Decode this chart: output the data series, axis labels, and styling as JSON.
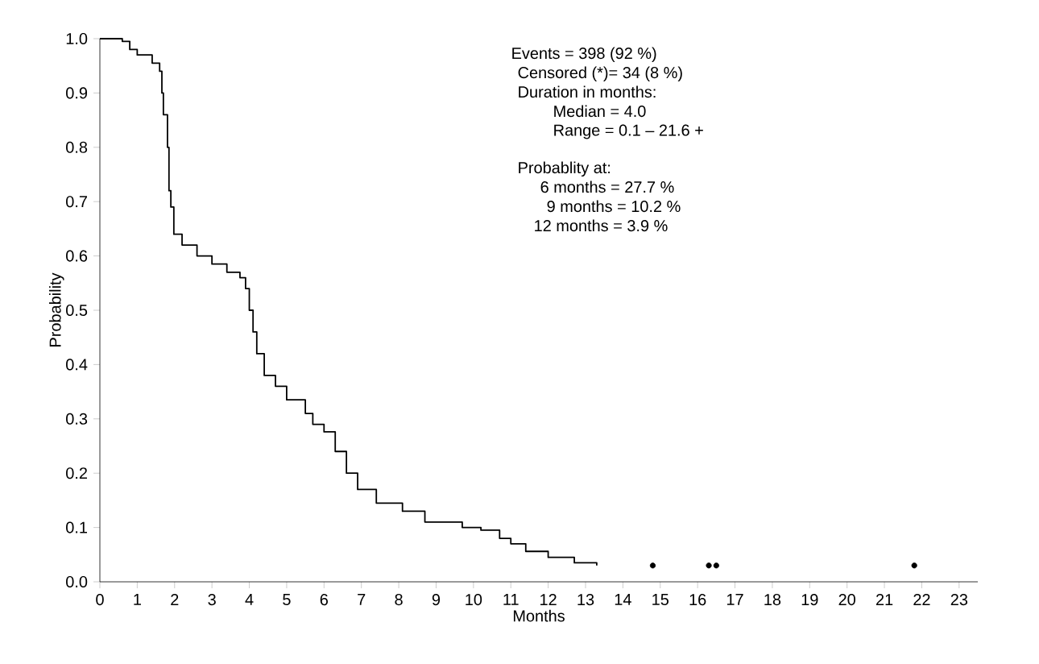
{
  "chart_data": {
    "type": "step",
    "xlabel": "Months",
    "ylabel": "Probability",
    "xlim": [
      0,
      23.5
    ],
    "ylim": [
      0,
      1.0
    ],
    "xticks": [
      0,
      1,
      2,
      3,
      4,
      5,
      6,
      7,
      8,
      9,
      10,
      11,
      12,
      13,
      14,
      15,
      16,
      17,
      18,
      19,
      20,
      21,
      22,
      23
    ],
    "yticks": [
      {
        "value": 0,
        "label": "0.0"
      },
      0.1,
      0.2,
      0.3,
      0.4,
      0.5,
      0.6,
      0.7,
      0.8,
      0.9,
      {
        "value": 1,
        "label": "1.0"
      }
    ],
    "grid": false,
    "series": [
      {
        "color": "#000000",
        "x": [
          0,
          0.6,
          0.8,
          1.0,
          1.4,
          1.6,
          1.66,
          1.7,
          1.81,
          1.85,
          1.9,
          1.98,
          2.2,
          2.6,
          3.0,
          3.4,
          3.75,
          3.9,
          4.0,
          4.1,
          4.2,
          4.4,
          4.7,
          5.0,
          5.5,
          5.7,
          6.0,
          6.3,
          6.6,
          6.9,
          7.4,
          8.1,
          8.7,
          9.7,
          10.2,
          10.7,
          11.0,
          11.4,
          12.0,
          12.7,
          13.3
        ],
        "values": [
          1.0,
          0.995,
          0.98,
          0.97,
          0.955,
          0.94,
          0.9,
          0.86,
          0.8,
          0.72,
          0.69,
          0.64,
          0.62,
          0.6,
          0.585,
          0.57,
          0.56,
          0.54,
          0.5,
          0.46,
          0.42,
          0.38,
          0.36,
          0.335,
          0.31,
          0.29,
          0.276,
          0.24,
          0.2,
          0.17,
          0.145,
          0.13,
          0.11,
          0.1,
          0.095,
          0.08,
          0.07,
          0.056,
          0.045,
          0.035,
          0.03
        ]
      },
      {
        "type": "scatter",
        "color": "#000000",
        "marker": "circle",
        "x": [
          14.8,
          16.3,
          16.5,
          21.8
        ],
        "values": [
          0.03,
          0.03,
          0.03,
          0.03
        ]
      }
    ],
    "annotations": [
      "Events = 398 (92 %)",
      "Censored (*)= 34 (8 %)",
      "Duration in months:",
      "Median = 4.0",
      "Range = 0.1 – 21.6 +",
      "Probablity at:",
      "6 months = 27.7 %",
      "9 months = 10.2 %",
      "12 months =   3.9 %"
    ]
  }
}
